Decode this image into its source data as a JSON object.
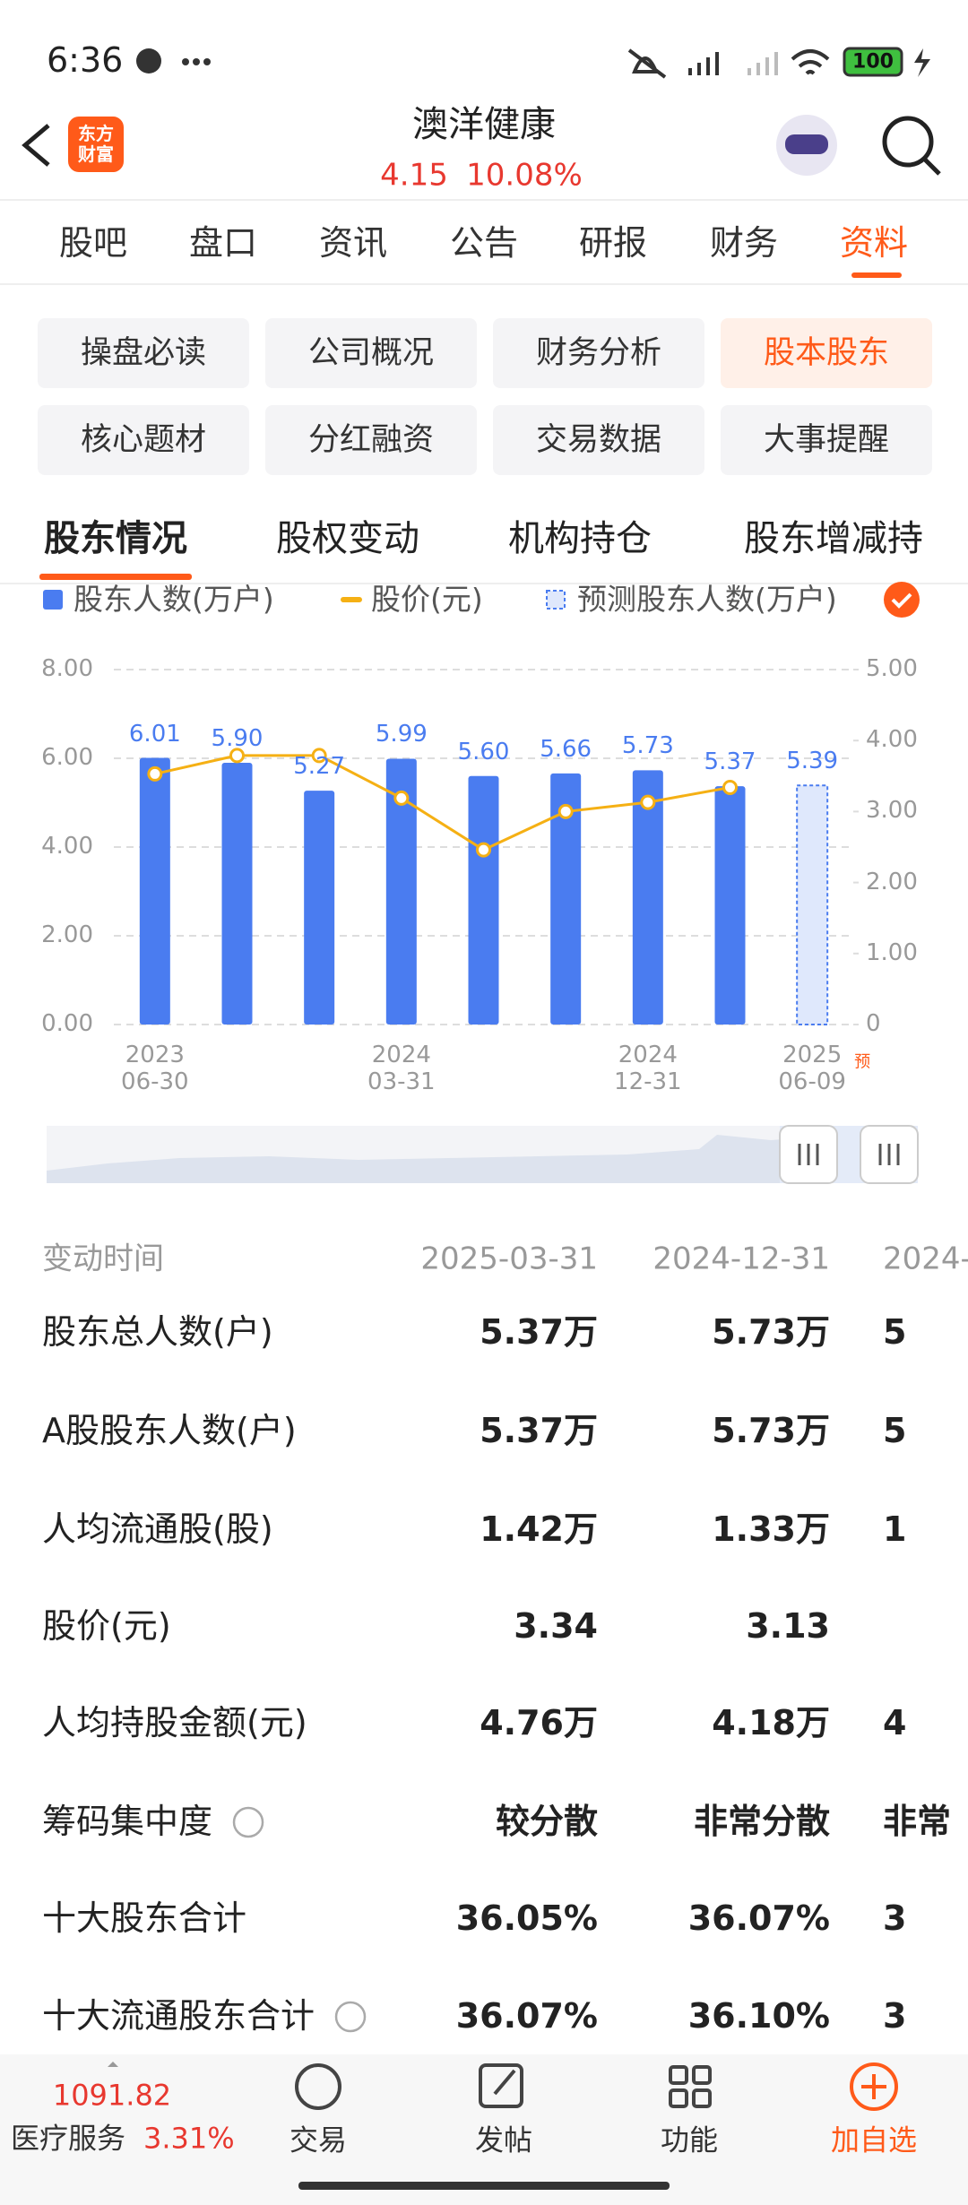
{
  "status_bar": {
    "time": "6:36",
    "battery": "100"
  },
  "header": {
    "logo": "东方\n财富",
    "title": "澳洋健康",
    "price": "4.15",
    "change": "10.08%"
  },
  "tabs": [
    "股吧",
    "盘口",
    "资讯",
    "公告",
    "研报",
    "财务",
    "资料"
  ],
  "chips": [
    "操盘必读",
    "公司概况",
    "财务分析",
    "股本股东",
    "核心题材",
    "分红融资",
    "交易数据",
    "大事提醒"
  ],
  "sub_tabs": [
    "股东情况",
    "股权变动",
    "机构持仓",
    "股东增减持"
  ],
  "chart_data": {
    "type": "bar",
    "categories": [
      "2023\n06-30",
      null,
      null,
      "2024\n03-31",
      null,
      null,
      "2024\n12-31",
      null,
      "2025\n06-09"
    ],
    "annotation": "预",
    "series": [
      {
        "name": "股东人数(万户)",
        "type": "bar",
        "color": "#4a7cf0",
        "values": [
          6.01,
          5.9,
          5.27,
          5.99,
          5.6,
          5.66,
          5.73,
          5.37,
          null
        ],
        "value_labels": [
          "6.01",
          "5.90",
          "5.27",
          "5.99",
          "5.60",
          "5.66",
          "5.73",
          "5.37",
          null
        ]
      },
      {
        "name": "股价(元)",
        "type": "line",
        "axis": "y2",
        "color": "#f5b014",
        "values": [
          3.53,
          3.79,
          3.79,
          3.19,
          2.46,
          3.0,
          3.13,
          3.34,
          null
        ]
      },
      {
        "name": "预测股东人数(万户)",
        "type": "forecast",
        "color": "#4a7cf0",
        "values": [
          null,
          null,
          null,
          null,
          null,
          null,
          null,
          null,
          5.39
        ],
        "value_labels": [
          null,
          null,
          null,
          null,
          null,
          null,
          null,
          null,
          "5.39"
        ]
      }
    ],
    "ylim": [
      0,
      8
    ],
    "yticks": [
      {
        "value": 0,
        "label": "0.00"
      },
      {
        "value": 2,
        "label": "2.00"
      },
      {
        "value": 4,
        "label": "4.00"
      },
      {
        "value": 6,
        "label": "6.00"
      },
      {
        "value": 8,
        "label": "8.00"
      }
    ],
    "y2lim": [
      0,
      5
    ],
    "y2ticks": [
      0,
      {
        "value": 1,
        "label": "1.00"
      },
      {
        "value": 2,
        "label": "2.00"
      },
      {
        "value": 3,
        "label": "3.00"
      },
      {
        "value": 4,
        "label": "4.00"
      },
      {
        "value": 5,
        "label": "5.00"
      }
    ],
    "grid": true
  },
  "table": {
    "header": [
      "变动时间",
      "2025-03-31",
      "2024-12-31",
      "2024-"
    ],
    "rows": [
      [
        "股东总人数(户)",
        "5.37万",
        "5.73万",
        "5"
      ],
      [
        "A股股东人数(户)",
        "5.37万",
        "5.73万",
        "5"
      ],
      [
        "人均流通股(股)",
        "1.42万",
        "1.33万",
        "1"
      ],
      [
        "股价(元)",
        "3.34",
        "3.13"
      ],
      [
        "人均持股金额(元)",
        "4.76万",
        "4.18万",
        "4"
      ],
      [
        "筹码集中度",
        "较分散",
        "非常分散",
        "非常"
      ],
      [
        "十大股东合计",
        "36.05%",
        "36.07%",
        "3"
      ],
      [
        "十大流通股东合计",
        "36.07%",
        "36.10%",
        "3"
      ]
    ]
  },
  "bottom_bar": {
    "index_value": "1091.82",
    "index_name": "医疗服务",
    "index_change": "3.31%",
    "buttons": [
      "交易",
      "发帖",
      "功能",
      "加自选"
    ]
  }
}
